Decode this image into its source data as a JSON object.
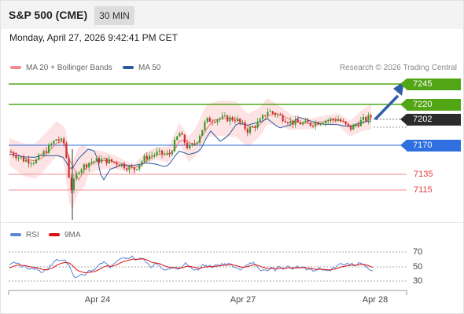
{
  "header": {
    "title": "S&P 500 (CME)",
    "timeframe": "30 MIN"
  },
  "datetime": "Monday, April 27, 2026 9:42:41 PM CET",
  "legend": {
    "bollinger": {
      "label": "MA 20 + Bollinger Bands",
      "color": "#f28b8b"
    },
    "ma50": {
      "label": "MA 50",
      "color": "#2c5aa0"
    }
  },
  "credit": "Research © 2026 Trading Central",
  "levels": [
    {
      "label": "7245",
      "style": "green"
    },
    {
      "label": "7220",
      "style": "green"
    },
    {
      "label": "7202",
      "style": "dark"
    },
    {
      "label": "7170",
      "style": "blue"
    },
    {
      "label": "7135",
      "style": "red"
    },
    {
      "label": "7115",
      "style": "red"
    }
  ],
  "rsi_legend": {
    "rsi": {
      "label": "RSI",
      "color": "#5b86d6"
    },
    "ma": {
      "label": "9MA",
      "color": "#dd1111"
    }
  },
  "rsi_ticks": [
    "70",
    "50",
    "30"
  ],
  "x_labels": [
    "Apr 24",
    "Apr 27",
    "Apr 28"
  ],
  "colors": {
    "up": "#3a9a2a",
    "down": "#cc2f2f",
    "green_line": "#52a515",
    "blue_line": "#2f6fe0",
    "red_line": "#f4a6a6",
    "dark_tag": "#2b2b2b",
    "band_fill": "#fde3e3",
    "arrow": "#2f5fa8"
  }
}
